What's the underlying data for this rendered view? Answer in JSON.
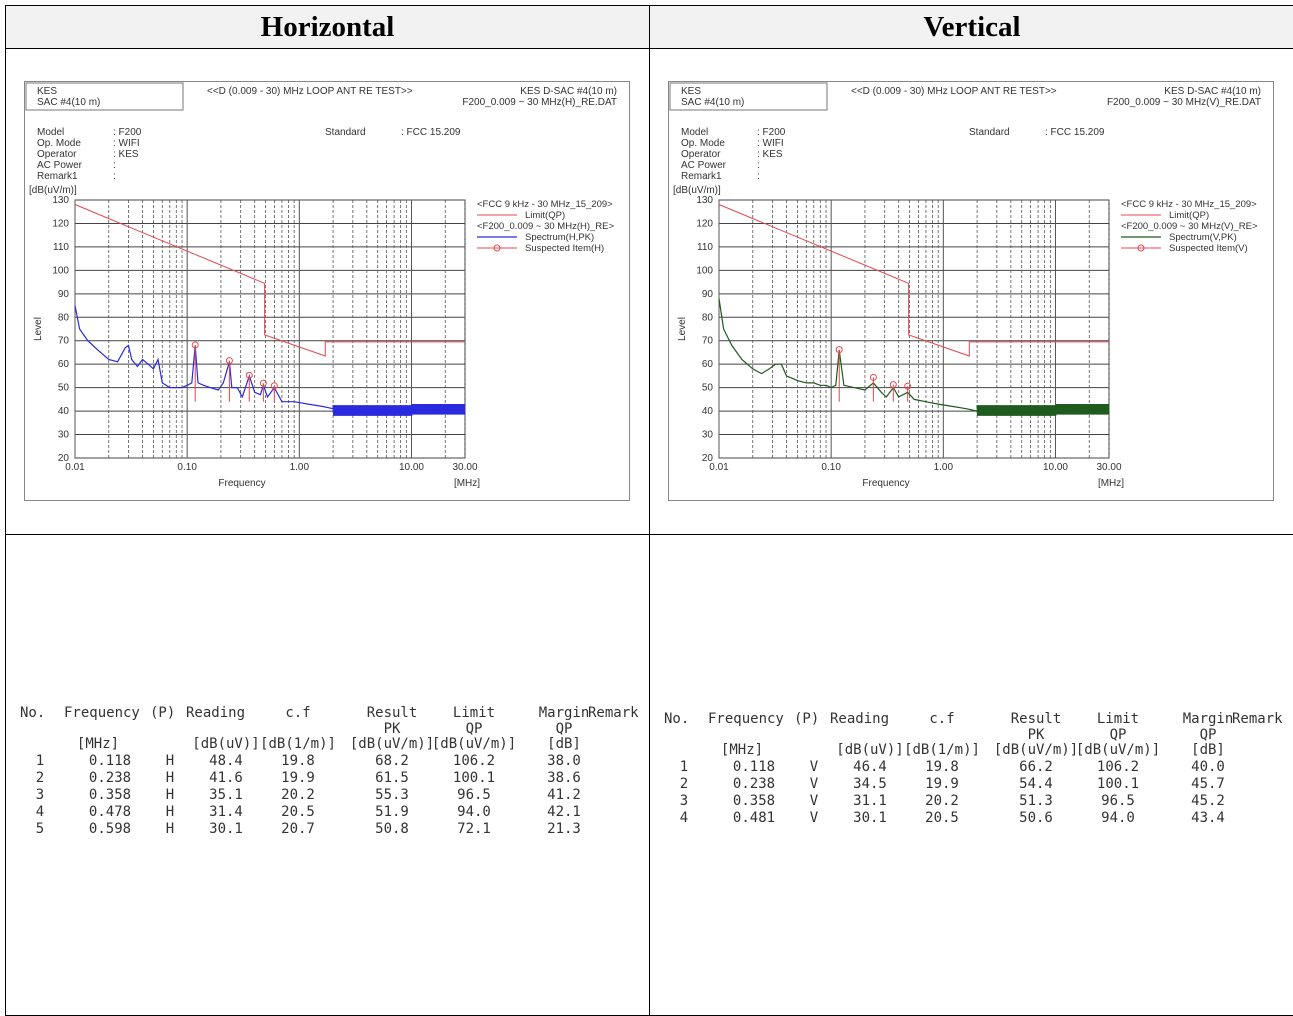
{
  "columns": [
    "Horizontal",
    "Vertical"
  ],
  "panels": [
    {
      "header": {
        "site": "KES",
        "sac": "SAC #4(10 m)",
        "title": "<<D (0.009 - 30) MHz LOOP ANT RE TEST>>",
        "site_right": "KES D-SAC #4(10 m)",
        "file": "F200_0.009 ~ 30 MHz(H)_RE.DAT"
      },
      "info": {
        "labels": [
          "Model",
          "Op. Mode",
          "Operator",
          "AC Power",
          "Remark1"
        ],
        "values": [
          ": F200",
          ": WIFI",
          ": KES",
          ":",
          ":"
        ],
        "standard_label": "Standard",
        "standard_value": ": FCC 15.209"
      },
      "legend": {
        "group1": "<FCC 9 kHz - 30 MHz_15_209>",
        "limit": "Limit(QP)",
        "group2": "<F200_0.009 ~ 30 MHz(H)_RE>",
        "spectrum": "Spectrum(H,PK)",
        "suspected": "Suspected Item(H)"
      },
      "chart_data": {
        "type": "line",
        "xscale": "log",
        "xlim": [
          0.01,
          30
        ],
        "ylim": [
          20,
          130
        ],
        "ylabel": "Level",
        "yunit": "[dB(uV/m)]",
        "xlabel": "Frequency",
        "xunit": "[MHz]",
        "xticks": [
          "0.01",
          "0.10",
          "1.00",
          "10.00",
          "30.00"
        ],
        "yticks": [
          20,
          30,
          40,
          50,
          60,
          70,
          80,
          90,
          100,
          110,
          120,
          130
        ],
        "grid": true,
        "legend_position": "right",
        "series": [
          {
            "name": "Limit(QP)",
            "color": "#e8484c",
            "x": [
              0.01,
              0.49,
              0.49,
              1.705,
              1.705,
              30
            ],
            "y": [
              128.1,
              94.5,
              72.5,
              63.5,
              69.5,
              69.5
            ]
          },
          {
            "name": "Spectrum(H,PK)",
            "color": "#2a2ae0",
            "x": [
              0.01,
              0.011,
              0.013,
              0.016,
              0.02,
              0.024,
              0.028,
              0.03,
              0.032,
              0.036,
              0.04,
              0.045,
              0.05,
              0.055,
              0.06,
              0.07,
              0.08,
              0.09,
              0.1,
              0.11,
              0.118,
              0.125,
              0.14,
              0.16,
              0.19,
              0.21,
              0.238,
              0.25,
              0.28,
              0.31,
              0.358,
              0.4,
              0.45,
              0.478,
              0.52,
              0.598,
              0.7,
              0.9,
              1.2,
              1.6,
              2,
              3,
              4,
              5,
              7,
              10,
              15,
              20,
              30
            ],
            "y": [
              85,
              75,
              70,
              66,
              62,
              61,
              67,
              68,
              62,
              59,
              62,
              60,
              58,
              62,
              52,
              50,
              50,
              50,
              51,
              52,
              68,
              52,
              51,
              50,
              49,
              52,
              61,
              50,
              50,
              46,
              55,
              48,
              47,
              51,
              46,
              50,
              44,
              44,
              43,
              42,
              41,
              40,
              40,
              40,
              39,
              40,
              40,
              40,
              40
            ]
          }
        ],
        "suspected_points": [
          {
            "x": 0.118,
            "y": 68.2
          },
          {
            "x": 0.238,
            "y": 61.5
          },
          {
            "x": 0.358,
            "y": 55.3
          },
          {
            "x": 0.478,
            "y": 51.9
          },
          {
            "x": 0.598,
            "y": 50.8
          }
        ]
      },
      "table": {
        "headers": {
          "no": "No.",
          "frequency": "Frequency",
          "p": "(P)",
          "reading": "Reading",
          "cf": "c.f",
          "result": "Result",
          "result_sub": "PK",
          "limit": "Limit",
          "limit_sub": "QP",
          "margin": "Margin",
          "margin_sub": "QP",
          "remark": "Remark"
        },
        "units": {
          "frequency": "[MHz]",
          "reading": "[dB(uV)]",
          "cf": "[dB(1/m)]",
          "result": "[dB(uV/m)]",
          "limit": "[dB(uV/m)]",
          "margin": "[dB]"
        },
        "rows": [
          {
            "no": "1",
            "freq": "0.118",
            "p": "H",
            "reading": "48.4",
            "cf": "19.8",
            "result": "68.2",
            "limit": "106.2",
            "margin": "38.0"
          },
          {
            "no": "2",
            "freq": "0.238",
            "p": "H",
            "reading": "41.6",
            "cf": "19.9",
            "result": "61.5",
            "limit": "100.1",
            "margin": "38.6"
          },
          {
            "no": "3",
            "freq": "0.358",
            "p": "H",
            "reading": "35.1",
            "cf": "20.2",
            "result": "55.3",
            "limit": "96.5",
            "margin": "41.2"
          },
          {
            "no": "4",
            "freq": "0.478",
            "p": "H",
            "reading": "31.4",
            "cf": "20.5",
            "result": "51.9",
            "limit": "94.0",
            "margin": "42.1"
          },
          {
            "no": "5",
            "freq": "0.598",
            "p": "H",
            "reading": "30.1",
            "cf": "20.7",
            "result": "50.8",
            "limit": "72.1",
            "margin": "21.3"
          }
        ]
      }
    },
    {
      "header": {
        "site": "KES",
        "sac": "SAC #4(10 m)",
        "title": "<<D (0.009 - 30) MHz LOOP ANT RE TEST>>",
        "site_right": "KES D-SAC #4(10 m)",
        "file": "F200_0.009 ~ 30 MHz(V)_RE.DAT"
      },
      "info": {
        "labels": [
          "Model",
          "Op. Mode",
          "Operator",
          "AC Power",
          "Remark1"
        ],
        "values": [
          ": F200",
          ": WIFI",
          ": KES",
          ":",
          ":"
        ],
        "standard_label": "Standard",
        "standard_value": ": FCC 15.209"
      },
      "legend": {
        "group1": "<FCC 9 kHz - 30 MHz_15_209>",
        "limit": "Limit(QP)",
        "group2": "<F200_0.009 ~ 30 MHz(V)_RE>",
        "spectrum": "Spectrum(V,PK)",
        "suspected": "Suspected Item(V)"
      },
      "chart_data": {
        "type": "line",
        "xscale": "log",
        "xlim": [
          0.01,
          30
        ],
        "ylim": [
          20,
          130
        ],
        "ylabel": "Level",
        "yunit": "[dB(uV/m)]",
        "xlabel": "Frequency",
        "xunit": "[MHz]",
        "xticks": [
          "0.01",
          "0.10",
          "1.00",
          "10.00",
          "30.00"
        ],
        "yticks": [
          20,
          30,
          40,
          50,
          60,
          70,
          80,
          90,
          100,
          110,
          120,
          130
        ],
        "grid": true,
        "legend_position": "right",
        "series": [
          {
            "name": "Limit(QP)",
            "color": "#e8484c",
            "x": [
              0.01,
              0.49,
              0.49,
              1.705,
              1.705,
              30
            ],
            "y": [
              128.1,
              94.5,
              72.5,
              63.5,
              69.5,
              69.5
            ]
          },
          {
            "name": "Spectrum(V,PK)",
            "color": "#1f5a1f",
            "x": [
              0.01,
              0.011,
              0.013,
              0.016,
              0.02,
              0.024,
              0.028,
              0.032,
              0.036,
              0.04,
              0.05,
              0.06,
              0.07,
              0.08,
              0.09,
              0.1,
              0.11,
              0.118,
              0.13,
              0.16,
              0.2,
              0.238,
              0.28,
              0.31,
              0.358,
              0.4,
              0.481,
              0.55,
              0.7,
              0.9,
              1.2,
              1.6,
              2,
              3,
              4,
              5,
              7,
              10,
              15,
              20,
              30
            ],
            "y": [
              88,
              75,
              68,
              62,
              58,
              56,
              58,
              60,
              60,
              55,
              53,
              52,
              52,
              51,
              51,
              50,
              51,
              66,
              51,
              50,
              49,
              52,
              48,
              46,
              50,
              46,
              48,
              45,
              44,
              43,
              42,
              41,
              40,
              40,
              39,
              40,
              40,
              40,
              41,
              40,
              42
            ]
          }
        ],
        "suspected_points": [
          {
            "x": 0.118,
            "y": 66.2
          },
          {
            "x": 0.238,
            "y": 54.4
          },
          {
            "x": 0.358,
            "y": 51.3
          },
          {
            "x": 0.481,
            "y": 50.6
          }
        ]
      },
      "table": {
        "headers": {
          "no": "No.",
          "frequency": "Frequency",
          "p": "(P)",
          "reading": "Reading",
          "cf": "c.f",
          "result": "Result",
          "result_sub": "PK",
          "limit": "Limit",
          "limit_sub": "QP",
          "margin": "Margin",
          "margin_sub": "QP",
          "remark": "Remark"
        },
        "units": {
          "frequency": "[MHz]",
          "reading": "[dB(uV)]",
          "cf": "[dB(1/m)]",
          "result": "[dB(uV/m)]",
          "limit": "[dB(uV/m)]",
          "margin": "[dB]"
        },
        "rows": [
          {
            "no": "1",
            "freq": "0.118",
            "p": "V",
            "reading": "46.4",
            "cf": "19.8",
            "result": "66.2",
            "limit": "106.2",
            "margin": "40.0"
          },
          {
            "no": "2",
            "freq": "0.238",
            "p": "V",
            "reading": "34.5",
            "cf": "19.9",
            "result": "54.4",
            "limit": "100.1",
            "margin": "45.7"
          },
          {
            "no": "3",
            "freq": "0.358",
            "p": "V",
            "reading": "31.1",
            "cf": "20.2",
            "result": "51.3",
            "limit": "96.5",
            "margin": "45.2"
          },
          {
            "no": "4",
            "freq": "0.481",
            "p": "V",
            "reading": "30.1",
            "cf": "20.5",
            "result": "50.6",
            "limit": "94.0",
            "margin": "43.4"
          }
        ]
      }
    }
  ]
}
